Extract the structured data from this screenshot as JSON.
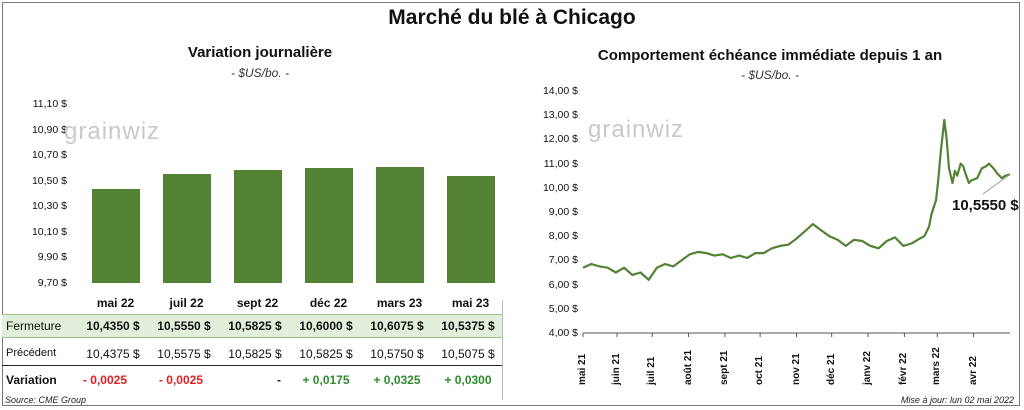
{
  "title": "Marché du blé à Chicago",
  "left": {
    "title": "Variation journalière",
    "unit": "- $US/bo. -",
    "yticks": [
      "11,10 $",
      "10,90 $",
      "10,70 $",
      "10,50 $",
      "10,30 $",
      "10,10 $",
      "9,90 $",
      "9,70 $"
    ]
  },
  "right": {
    "title": "Comportement échéance immédiate depuis 1 an",
    "unit": "- $US/bo. -",
    "yticks": [
      "14,00 $",
      "13,00 $",
      "12,00 $",
      "11,00 $",
      "10,00 $",
      "9,00 $",
      "8,00 $",
      "7,00 $",
      "6,00 $",
      "5,00 $",
      "4,00 $"
    ],
    "xticks": [
      "mai 21",
      "juin 21",
      "juil 21",
      "août 21",
      "sept 21",
      "oct 21",
      "nov 21",
      "déc 21",
      "janv 22",
      "févr 22",
      "mars 22",
      "avr 22"
    ],
    "callout": "10,5550 $"
  },
  "watermark": "grainwiz",
  "table": {
    "rows": [
      {
        "label": "Fermeture",
        "values": [
          "10,4350  $",
          "10,5550  $",
          "10,5825  $",
          "10,6000  $",
          "10,6075  $",
          "10,5375  $"
        ]
      },
      {
        "label": "Précédent",
        "values": [
          "10,4375  $",
          "10,5575  $",
          "10,5825  $",
          "10,5825  $",
          "10,5750  $",
          "10,5075  $"
        ]
      },
      {
        "label": "Variation",
        "values": [
          "- 0,0025",
          "- 0,0025",
          "-",
          "+ 0,0175",
          "+ 0,0325",
          "+ 0,0300"
        ]
      }
    ]
  },
  "source": "Source: CME Group",
  "updated": "Mise à jour: lun 02 mai 2022",
  "colors": {
    "bar": "#548235",
    "line": "#548235",
    "neg": "#e02020",
    "pos": "#2e8b2e",
    "highlight": "#e2efda"
  },
  "chart_data": [
    {
      "type": "bar",
      "title": "Variation journalière",
      "categories": [
        "mai 22",
        "juil 22",
        "sept 22",
        "déc 22",
        "mars 23",
        "mai 23"
      ],
      "values": [
        10.435,
        10.555,
        10.5825,
        10.6,
        10.6075,
        10.5375
      ],
      "ylim": [
        9.7,
        11.1
      ]
    },
    {
      "type": "line",
      "title": "Comportement échéance immédiate depuis 1 an",
      "ylim": [
        4,
        14
      ],
      "x_start": "2021-05-03",
      "x_end": "2022-05-02",
      "x": [
        "2021-05-03",
        "2021-05-10",
        "2021-05-17",
        "2021-05-24",
        "2021-05-31",
        "2021-06-07",
        "2021-06-14",
        "2021-06-21",
        "2021-06-28",
        "2021-07-05",
        "2021-07-12",
        "2021-07-19",
        "2021-07-26",
        "2021-08-02",
        "2021-08-09",
        "2021-08-16",
        "2021-08-23",
        "2021-08-30",
        "2021-09-06",
        "2021-09-13",
        "2021-09-20",
        "2021-09-27",
        "2021-10-04",
        "2021-10-11",
        "2021-10-18",
        "2021-10-25",
        "2021-11-01",
        "2021-11-08",
        "2021-11-15",
        "2021-11-22",
        "2021-11-29",
        "2021-12-06",
        "2021-12-13",
        "2021-12-20",
        "2021-12-27",
        "2022-01-03",
        "2022-01-10",
        "2022-01-17",
        "2022-01-24",
        "2022-01-31",
        "2022-02-07",
        "2022-02-14",
        "2022-02-18",
        "2022-02-22",
        "2022-02-24",
        "2022-02-28",
        "2022-03-02",
        "2022-03-04",
        "2022-03-07",
        "2022-03-09",
        "2022-03-11",
        "2022-03-14",
        "2022-03-16",
        "2022-03-18",
        "2022-03-21",
        "2022-03-23",
        "2022-03-25",
        "2022-03-28",
        "2022-03-30",
        "2022-04-04",
        "2022-04-08",
        "2022-04-12",
        "2022-04-14",
        "2022-04-18",
        "2022-04-21",
        "2022-04-25",
        "2022-04-28",
        "2022-05-02"
      ],
      "y": [
        6.7,
        6.85,
        6.75,
        6.7,
        6.5,
        6.7,
        6.4,
        6.5,
        6.2,
        6.7,
        6.85,
        6.75,
        7.0,
        7.25,
        7.35,
        7.3,
        7.2,
        7.25,
        7.1,
        7.2,
        7.1,
        7.3,
        7.3,
        7.5,
        7.6,
        7.65,
        7.9,
        8.2,
        8.5,
        8.25,
        8.0,
        7.85,
        7.6,
        7.85,
        7.8,
        7.6,
        7.5,
        7.8,
        7.95,
        7.6,
        7.7,
        7.9,
        8.0,
        8.4,
        8.9,
        9.5,
        10.4,
        11.5,
        12.8,
        12.0,
        10.8,
        10.2,
        10.7,
        10.5,
        11.0,
        10.9,
        10.6,
        10.2,
        10.3,
        10.4,
        10.8,
        10.9,
        11.0,
        10.8,
        10.6,
        10.4,
        10.5,
        10.555
      ]
    }
  ]
}
